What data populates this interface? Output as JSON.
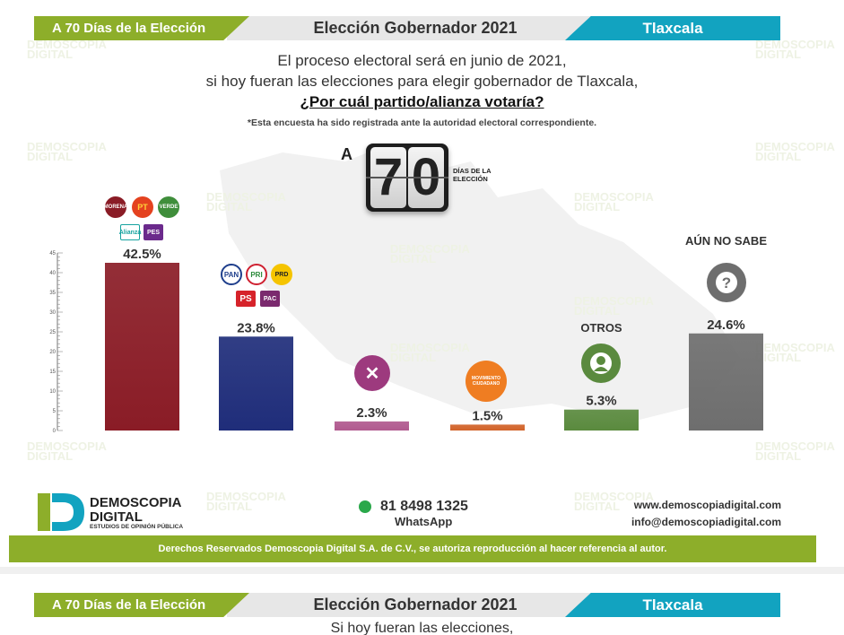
{
  "header": {
    "left": "A 70 Días de la Elección",
    "center": "Elección Gobernador 2021",
    "right": "Tlaxcala"
  },
  "question": {
    "line1": "El proceso electoral será en junio de 2021,",
    "line2": "si hoy fueran las elecciones para elegir gobernador de Tlaxcala,",
    "line3": "¿Por cuál partido/alianza votaría?",
    "note": "*Esta encuesta ha sido registrada ante la autoridad electoral correspondiente."
  },
  "countdown": {
    "prefix": "A",
    "digit1": "7",
    "digit2": "0",
    "label": "DÍAS DE LA ELECCIÓN"
  },
  "watermark": {
    "line1": "DEMOSCOPIA",
    "line2": "DIGITAL"
  },
  "logos": {
    "morena": "MORENA",
    "pt": "PT",
    "verde": "VERDE",
    "nueva_alianza": "Alianza",
    "pes": "PES",
    "pan": "PAN",
    "pri": "PRI",
    "prd": "PRD",
    "ps": "PS",
    "pac": "PAC",
    "mc": "MOVIMIENTO CIUDADANO",
    "fxm": "FXM"
  },
  "chart_data": {
    "type": "bar",
    "categories": [
      "MORENA-PT-VERDE-NA-PES",
      "PAN-PRI-PRD-PS-PAC",
      "FXM",
      "MC",
      "OTROS",
      "AÚN NO SABE"
    ],
    "values": [
      42.5,
      23.8,
      2.3,
      1.5,
      5.3,
      24.6
    ],
    "value_labels": [
      "42.5%",
      "23.8%",
      "2.3%",
      "1.5%",
      "5.3%",
      "24.6%"
    ],
    "category_labels_shown": [
      "",
      "",
      "",
      "",
      "OTROS",
      "AÚN NO SABE"
    ],
    "colors": [
      "#8a1c26",
      "#1f2d7a",
      "#b15a8f",
      "#d2632a",
      "#5a8a3e",
      "#6e6e6e"
    ],
    "yticks": [
      "0",
      "5",
      "10",
      "15",
      "20",
      "25",
      "30",
      "35",
      "40",
      "45"
    ],
    "ylim": [
      0,
      45
    ],
    "title": "",
    "xlabel": "",
    "ylabel": ""
  },
  "footer": {
    "brand1": "DEMOSCOPIA",
    "brand2": "DIGITAL",
    "brand_sub": "ESTUDIOS DE OPINIÓN PÚBLICA",
    "phone": "81 8498 1325",
    "whatsapp": "WhatsApp",
    "web": "www.demoscopiadigital.com",
    "email": "info@demoscopiadigital.com",
    "copyright": "Derechos Reservados Demoscopia Digital S.A. de C.V., se autoriza reproducción al hacer referencia al autor."
  },
  "next_slide": {
    "left": "A 70 Días de la Elección",
    "center": "Elección Gobernador 2021",
    "right": "Tlaxcala",
    "question": "Si hoy fueran las elecciones,"
  }
}
